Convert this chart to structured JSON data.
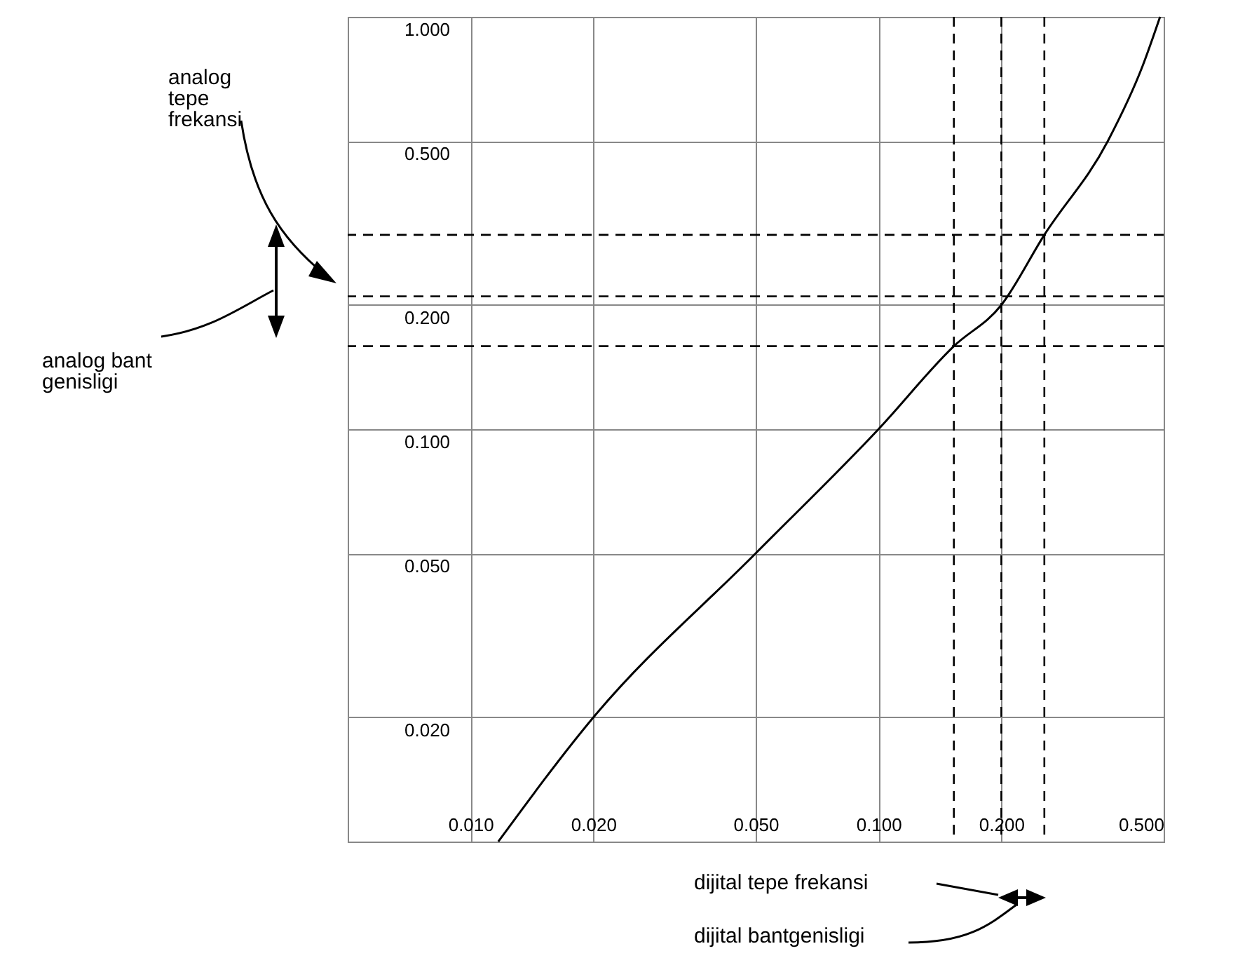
{
  "chart_data": {
    "type": "line",
    "x": [
      0.0117,
      0.02,
      0.05,
      0.1,
      0.153,
      0.2,
      0.255,
      0.365,
      0.444,
      0.49
    ],
    "values": [
      0.01,
      0.02,
      0.05,
      0.1,
      0.159,
      0.2,
      0.296,
      0.5,
      0.76,
      1.0
    ],
    "color": "#000000",
    "log": "xy",
    "grid": true,
    "marker": "none",
    "line_style": "solid",
    "xlim": [
      0.005,
      0.5
    ],
    "ylim": [
      0.01,
      1.0
    ],
    "xticks": [
      {
        "value": 0.005,
        "label": null
      },
      {
        "value": 0.01,
        "label": "0.010"
      },
      {
        "value": 0.02,
        "label": "0.020"
      },
      {
        "value": 0.05,
        "label": "0.050"
      },
      {
        "value": 0.1,
        "label": "0.100"
      },
      {
        "value": 0.2,
        "label": "0.200"
      },
      {
        "value": 0.5,
        "label": "0.500"
      }
    ],
    "yticks": [
      {
        "value": 0.01,
        "label": null
      },
      {
        "value": 0.02,
        "label": "0.020"
      },
      {
        "value": 0.05,
        "label": "0.050"
      },
      {
        "value": 0.1,
        "label": "0.100"
      },
      {
        "value": 0.2,
        "label": "0.200"
      },
      {
        "value": 0.5,
        "label": "0.500"
      },
      {
        "value": 1.0,
        "label": "1.000"
      }
    ],
    "ref_lines": [
      {
        "axis": "y",
        "value": 0.296,
        "line_style": "dashed"
      },
      {
        "axis": "y",
        "value": 0.21,
        "line_style": "dashed"
      },
      {
        "axis": "y",
        "value": 0.159,
        "line_style": "dashed"
      },
      {
        "axis": "x",
        "value": 0.153,
        "line_style": "dashed"
      },
      {
        "axis": "x",
        "value": 0.2,
        "line_style": "dashed"
      },
      {
        "axis": "x",
        "value": 0.255,
        "line_style": "dashed"
      }
    ],
    "annotations": [
      "analog tepe frekansi",
      "analog bant genisligi",
      "dijital tepe frekansi",
      "dijital bantgenisligi"
    ]
  }
}
